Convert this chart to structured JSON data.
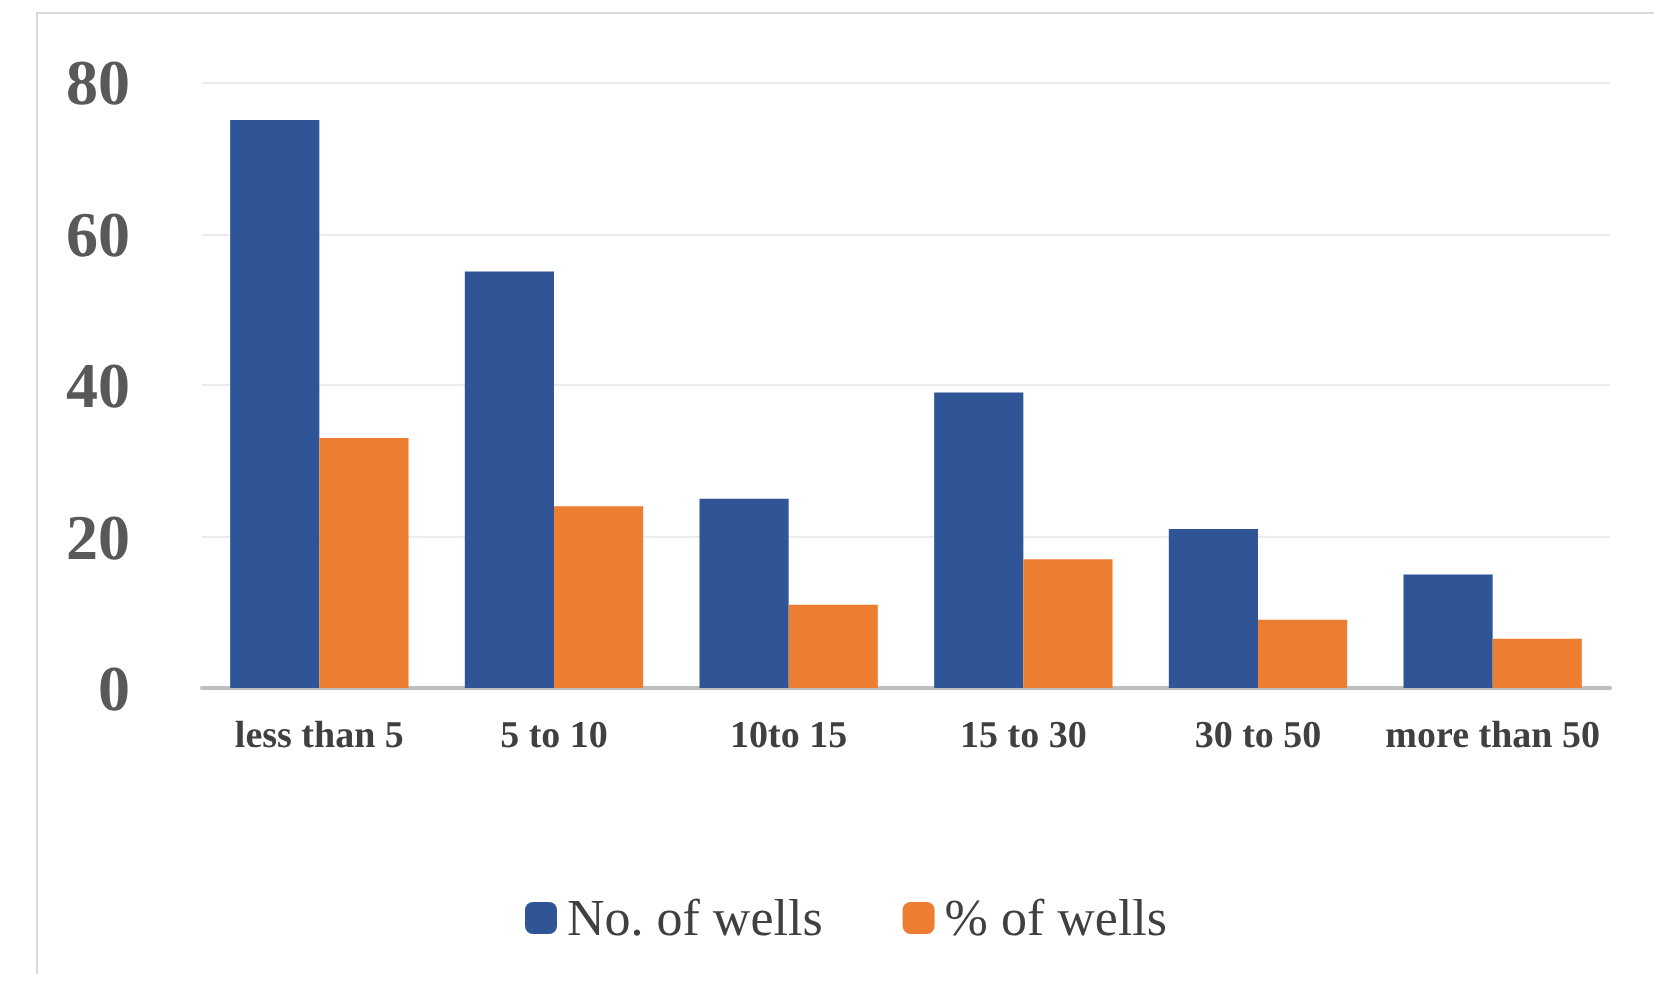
{
  "chart_data": {
    "type": "bar",
    "categories": [
      "less than 5",
      "5 to 10",
      "10to 15",
      "15 to 30",
      "30 to 50",
      "more than 50"
    ],
    "series": [
      {
        "name": "No. of wells",
        "color": "#2f5597",
        "values": [
          75,
          55,
          25,
          39,
          21,
          15
        ]
      },
      {
        "name": "% of wells",
        "color": "#ed7d31",
        "values": [
          33,
          24,
          11,
          17,
          9,
          6.5
        ]
      }
    ],
    "ylim": [
      0,
      80
    ],
    "yticks": [
      0,
      20,
      40,
      60,
      80
    ],
    "grid": "y",
    "legend": "bottom"
  }
}
